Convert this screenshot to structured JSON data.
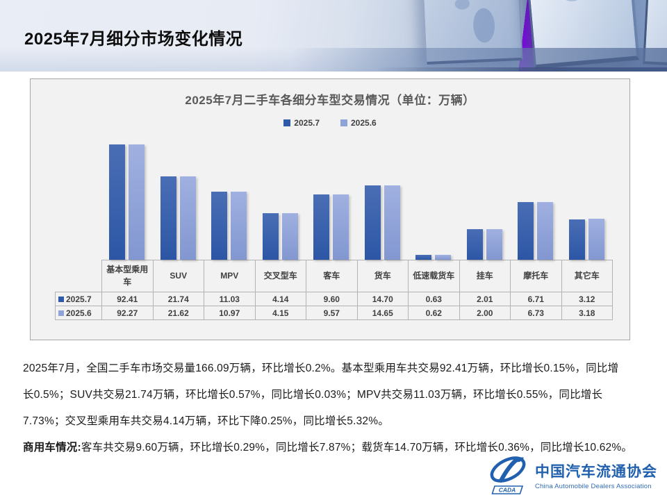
{
  "header": {
    "title": "2025年7月细分市场变化情况"
  },
  "chart": {
    "title": "2025年7月二手车各细分车型交易情况（单位：万辆）",
    "legend": [
      {
        "label": "2025.7",
        "color": "#2e5aa7"
      },
      {
        "label": "2025.6",
        "color": "#8fa3d8"
      }
    ]
  },
  "chart_data": {
    "type": "bar",
    "title": "2025年7月二手车各细分车型交易情况（单位：万辆）",
    "unit": "万辆",
    "categories": [
      "基本型乘用车",
      "SUV",
      "MPV",
      "交叉型车",
      "客车",
      "货车",
      "低速载货车",
      "挂车",
      "摩托车",
      "其它车"
    ],
    "series": [
      {
        "name": "2025.7",
        "color": "#2e5aa7",
        "values": [
          92.41,
          21.74,
          11.03,
          4.14,
          9.6,
          14.7,
          0.63,
          2.01,
          6.71,
          3.12
        ]
      },
      {
        "name": "2025.6",
        "color": "#8fa3d8",
        "values": [
          92.27,
          21.62,
          10.97,
          4.15,
          9.57,
          14.65,
          0.62,
          2.0,
          6.73,
          3.18
        ]
      }
    ],
    "value_axis_scale": "logarithmic",
    "grid": false,
    "legend_position": "top",
    "data_table_shown": true
  },
  "table": {
    "columns": [
      "基本型乘用车",
      "SUV",
      "MPV",
      "交叉型车",
      "客车",
      "货车",
      "低速载货车",
      "挂车",
      "摩托车",
      "其它车"
    ],
    "rows": [
      {
        "label": "2025.7",
        "swatch": "#2e5aa7",
        "values": [
          "92.41",
          "21.74",
          "11.03",
          "4.14",
          "9.60",
          "14.70",
          "0.63",
          "2.01",
          "6.71",
          "3.12"
        ]
      },
      {
        "label": "2025.6",
        "swatch": "#8fa3d8",
        "values": [
          "92.27",
          "21.62",
          "10.97",
          "4.15",
          "9.57",
          "14.65",
          "0.62",
          "2.00",
          "6.73",
          "3.18"
        ]
      }
    ]
  },
  "body": {
    "lines": [
      "2025年7月，全国二手车市场交易量166.09万辆，环比增长0.2%。基本型乘用车共交易92.41万辆，环比增长0.15%，同比增",
      "长0.5%；SUV共交易21.74万辆，环比增长0.57%，同比增长0.03%；MPV共交易11.03万辆，环比增长0.55%，同比增长",
      "7.73%；交叉型乘用车共交易4.14万辆，环比下降0.25%，同比增长5.32%。"
    ],
    "para2_lead": "商用车情况:",
    "para2_rest": "客车共交易9.60万辆，环比增长0.29%，同比增长7.87%；载货车14.70万辆，环比增长0.36%，同比增长10.62%。"
  },
  "logo": {
    "cn": "中国汽车流通协会",
    "en": "China Automobile Dealers Association",
    "emblem_text": "CADA",
    "color": "#2160ae"
  },
  "colors": {
    "bar_2025_7_top": "#4a6eb5",
    "bar_2025_7_bottom": "#2c56a5",
    "bar_2025_6_top": "#a0b0e0",
    "bar_2025_6_bottom": "#8297d1",
    "card_bg": "#f2f2f2",
    "card_border": "#a6a6a6",
    "table_border": "#b3b3b3",
    "chart_text": "#404040",
    "title_gray": "#595959",
    "logo_blue": "#2160ae"
  }
}
